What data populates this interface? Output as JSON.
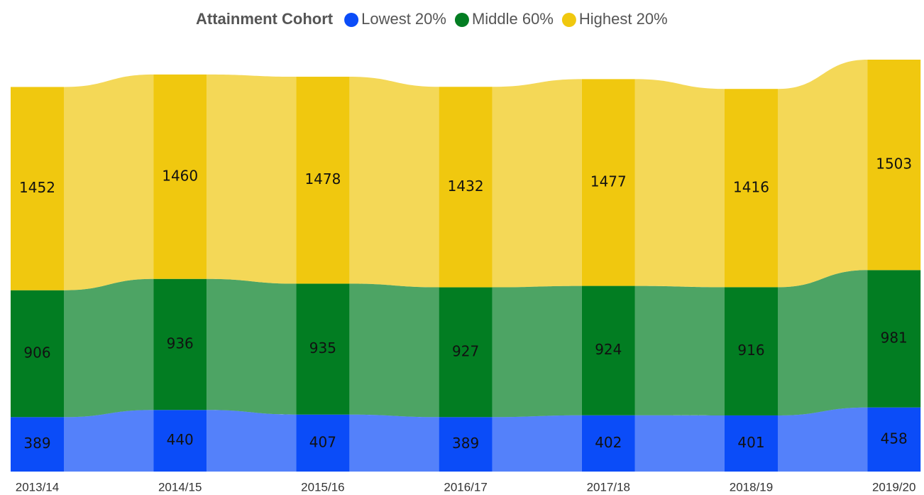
{
  "chart_data": {
    "type": "ribbon",
    "legend_title": "Attainment Cohort",
    "legend": "top",
    "categories": [
      "2013/14",
      "2014/15",
      "2015/16",
      "2016/17",
      "2017/18",
      "2018/19",
      "2019/20"
    ],
    "series": [
      {
        "name": "Lowest 20%",
        "color": "#0b4cf8",
        "values": [
          389,
          440,
          407,
          389,
          402,
          401,
          458
        ]
      },
      {
        "name": "Middle 60%",
        "color": "#027d22",
        "values": [
          906,
          936,
          935,
          927,
          924,
          916,
          981
        ]
      },
      {
        "name": "Highest 20%",
        "color": "#f0c80f",
        "values": [
          1452,
          1460,
          1478,
          1432,
          1477,
          1416,
          1503
        ]
      }
    ]
  }
}
